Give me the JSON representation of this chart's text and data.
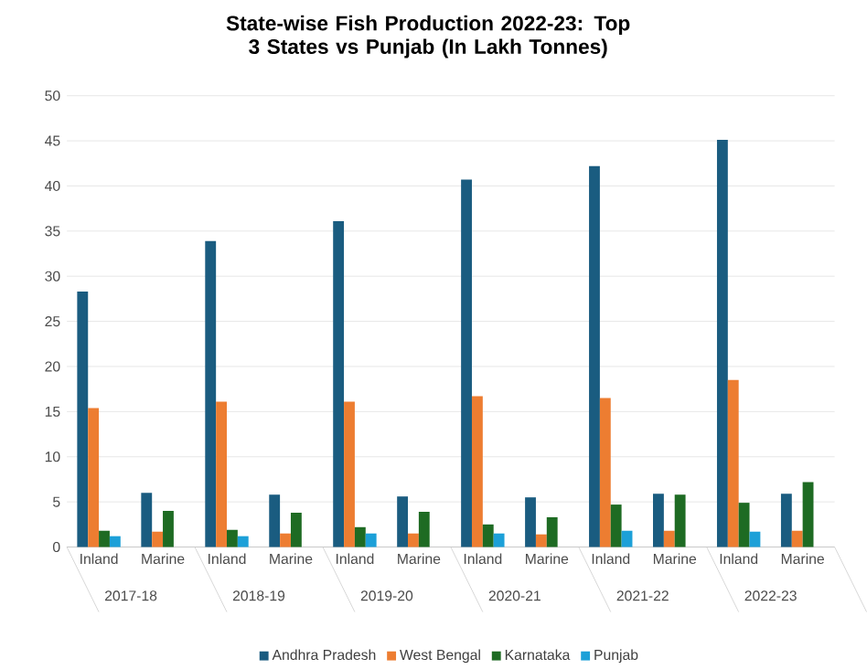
{
  "chart_data": {
    "type": "bar",
    "title": "State-wise Fish Production 2022-23: Top 3 States vs Punjab (In Lakh Tonnes)",
    "categories": [
      "Inland",
      "Marine",
      "Inland",
      "Marine",
      "Inland",
      "Marine",
      "Inland",
      "Marine",
      "Inland",
      "Marine",
      "Inland",
      "Marine"
    ],
    "annotations": [
      "2017-18",
      "2018-19",
      "2019-20",
      "2020-21",
      "2021-22",
      "2022-23"
    ],
    "series": [
      {
        "name": "Andhra Pradesh",
        "color": "#1a5c80",
        "values": [
          28.3,
          6.0,
          33.9,
          5.8,
          36.1,
          5.6,
          40.7,
          5.5,
          42.2,
          5.9,
          45.1,
          5.9
        ]
      },
      {
        "name": "West Bengal",
        "color": "#ed7d31",
        "values": [
          15.4,
          1.7,
          16.1,
          1.5,
          16.1,
          1.5,
          16.7,
          1.4,
          16.5,
          1.8,
          18.5,
          1.8
        ]
      },
      {
        "name": "Karnataka",
        "color": "#1e6b23",
        "values": [
          1.8,
          4.0,
          1.9,
          3.8,
          2.2,
          3.9,
          2.5,
          3.3,
          4.7,
          5.8,
          4.9,
          7.2
        ]
      },
      {
        "name": "Punjab",
        "color": "#1ca0d8",
        "values": [
          1.2,
          null,
          1.2,
          null,
          1.5,
          null,
          1.5,
          null,
          1.8,
          null,
          1.7,
          null
        ]
      }
    ],
    "ylim": [
      0,
      50
    ],
    "yticks": [
      0,
      5,
      10,
      15,
      20,
      25,
      30,
      35,
      40,
      45,
      50
    ],
    "grid": "y",
    "legend": "bottom"
  }
}
